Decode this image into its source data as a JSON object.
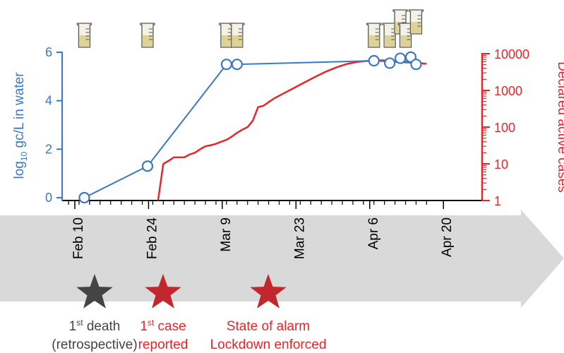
{
  "chart_data": {
    "type": "line",
    "xlabel": "",
    "x_ticks": [
      "Feb 10",
      "Feb 24",
      "Mar 9",
      "Mar 23",
      "Apr 6",
      "Apr 20"
    ],
    "x_tick_days": [
      0,
      14,
      28,
      42,
      56,
      70
    ],
    "ylabel_left_prefix": "log",
    "ylabel_left_sub": "10",
    "ylabel_left_suffix": " gc/L in water",
    "ylim_left": [
      0,
      6
    ],
    "yticks_left": [
      "0",
      "2",
      "4",
      "6"
    ],
    "ylabel_right": "Declared active cases",
    "ylim_right": [
      1,
      10000
    ],
    "yscale_right": "log",
    "yticks_right": [
      "1",
      "10",
      "100",
      "1000",
      "10000"
    ],
    "colors": {
      "water": "#3a78c3",
      "cases": "#e8252a",
      "arrow": "#d9d9d9",
      "death": "#444444",
      "star_red": "#c1272d"
    },
    "series": [
      {
        "axis": "left",
        "points": [
          {
            "x": "Feb 11",
            "day": 1,
            "y": 0.0
          },
          {
            "x": "Feb 23",
            "day": 13,
            "y": 1.3
          },
          {
            "x": "Mar 9",
            "day": 28,
            "y": 5.5
          },
          {
            "x": "Mar 11",
            "day": 30,
            "y": 5.5
          },
          {
            "x": "Apr 6",
            "day": 56,
            "y": 5.65
          },
          {
            "x": "Apr 9",
            "day": 59,
            "y": 5.55
          },
          {
            "x": "Apr 11",
            "day": 61,
            "y": 5.75
          },
          {
            "x": "Apr 13",
            "day": 63,
            "y": 5.8
          },
          {
            "x": "Apr 14",
            "day": 64,
            "y": 5.5
          }
        ]
      },
      {
        "axis": "right",
        "points": [
          {
            "x": "Feb 25",
            "day": 15,
            "y": 1
          },
          {
            "x": "Feb 26",
            "day": 16,
            "y": 10
          },
          {
            "x": "Feb 27",
            "day": 17,
            "y": 12
          },
          {
            "x": "Feb 28",
            "day": 18,
            "y": 15
          },
          {
            "x": "Mar 1",
            "day": 19,
            "y": 15
          },
          {
            "x": "Mar 2",
            "day": 20,
            "y": 15
          },
          {
            "x": "Mar 3",
            "day": 21,
            "y": 18
          },
          {
            "x": "Mar 4",
            "day": 22,
            "y": 20
          },
          {
            "x": "Mar 5",
            "day": 23,
            "y": 25
          },
          {
            "x": "Mar 6",
            "day": 24,
            "y": 30
          },
          {
            "x": "Mar 7",
            "day": 25,
            "y": 32
          },
          {
            "x": "Mar 8",
            "day": 26,
            "y": 35
          },
          {
            "x": "Mar 9",
            "day": 27,
            "y": 40
          },
          {
            "x": "Mar 10",
            "day": 28,
            "y": 45
          },
          {
            "x": "Mar 11",
            "day": 29,
            "y": 55
          },
          {
            "x": "Mar 12",
            "day": 30,
            "y": 70
          },
          {
            "x": "Mar 13",
            "day": 31,
            "y": 85
          },
          {
            "x": "Mar 14",
            "day": 32,
            "y": 100
          },
          {
            "x": "Mar 15",
            "day": 33,
            "y": 150
          },
          {
            "x": "Mar 16",
            "day": 34,
            "y": 350
          },
          {
            "x": "Mar 17",
            "day": 35,
            "y": 380
          },
          {
            "x": "Mar 19",
            "day": 37,
            "y": 600
          },
          {
            "x": "Mar 21",
            "day": 39,
            "y": 850
          },
          {
            "x": "Mar 23",
            "day": 41,
            "y": 1200
          },
          {
            "x": "Mar 25",
            "day": 43,
            "y": 1700
          },
          {
            "x": "Mar 27",
            "day": 45,
            "y": 2400
          },
          {
            "x": "Mar 29",
            "day": 47,
            "y": 3300
          },
          {
            "x": "Mar 31",
            "day": 49,
            "y": 4300
          },
          {
            "x": "Apr 2",
            "day": 51,
            "y": 5300
          },
          {
            "x": "Apr 4",
            "day": 53,
            "y": 6000
          },
          {
            "x": "Apr 6",
            "day": 55,
            "y": 6400
          },
          {
            "x": "Apr 8",
            "day": 57,
            "y": 6600
          },
          {
            "x": "Apr 10",
            "day": 59,
            "y": 6500
          },
          {
            "x": "Apr 12",
            "day": 61,
            "y": 6200
          },
          {
            "x": "Apr 14",
            "day": 63,
            "y": 5800
          },
          {
            "x": "Apr 17",
            "day": 66,
            "y": 5300
          }
        ]
      }
    ],
    "sample_beakers": [
      {
        "day": 1,
        "level": 0
      },
      {
        "day": 13,
        "level": 0
      },
      {
        "day": 28,
        "level": 0
      },
      {
        "day": 30,
        "level": 0
      },
      {
        "day": 56,
        "level": 0
      },
      {
        "day": 59,
        "level": 0
      },
      {
        "day": 61,
        "level": 1
      },
      {
        "day": 62,
        "level": 0
      },
      {
        "day": 64,
        "level": 1
      }
    ],
    "events": [
      {
        "day": 1,
        "color": "death",
        "line1_main": "1",
        "line1_sup": "st",
        "line1_rest": " death",
        "line2": "(retrospective)"
      },
      {
        "day": 15,
        "color": "star_red",
        "line1_main": "1",
        "line1_sup": "st",
        "line1_rest": " case",
        "line2": "reported"
      },
      {
        "day": 35,
        "color": "star_red",
        "line1_main": "State of alarm",
        "line1_sup": "",
        "line1_rest": "",
        "line2": "Lockdown enforced"
      }
    ]
  }
}
